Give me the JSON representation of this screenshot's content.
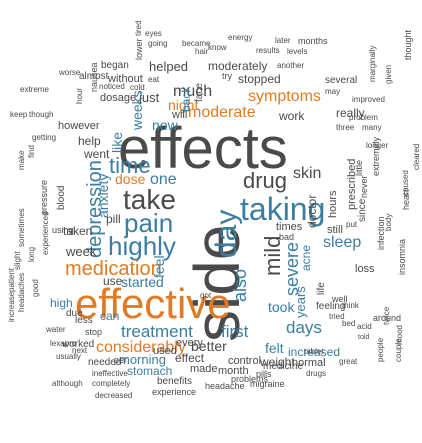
{
  "palette": {
    "gray": "#4f4f4f",
    "blue": "#3b7ea1",
    "orange": "#e07b24",
    "green": "#2f8f3a",
    "teal": "#4aa6b5",
    "darkgray": "#2e2e2e"
  },
  "words": [
    {
      "text": "side",
      "weight": 99,
      "color": "#4a4a4a"
    },
    {
      "text": "effects",
      "weight": 100,
      "color": "#4a4a4a"
    },
    {
      "text": "effective",
      "weight": 90,
      "color": "#e07b24"
    },
    {
      "text": "day",
      "weight": 50,
      "color": "#3b7ea1"
    },
    {
      "text": "drug",
      "weight": 40,
      "color": "#4a4a4a"
    },
    {
      "text": "taking",
      "weight": 48,
      "color": "#3b7ea1"
    },
    {
      "text": "take",
      "weight": 44,
      "color": "#4a4a4a"
    },
    {
      "text": "time",
      "weight": 38,
      "color": "#3b7ea1"
    },
    {
      "text": "pain",
      "weight": 40,
      "color": "#3b7ea1"
    },
    {
      "text": "highly",
      "weight": 40,
      "color": "#3b7ea1"
    },
    {
      "text": "medication",
      "weight": 36,
      "color": "#e07b24"
    },
    {
      "text": "depression",
      "weight": 30,
      "color": "#3b7ea1"
    },
    {
      "text": "mild",
      "weight": 30,
      "color": "#4a4a4a"
    },
    {
      "text": "severe",
      "weight": 28,
      "color": "#3b7ea1"
    },
    {
      "text": "also",
      "weight": 30,
      "color": "#3b7ea1"
    },
    {
      "text": "treatment",
      "weight": 28,
      "color": "#3b7ea1"
    },
    {
      "text": "considerably",
      "weight": 26,
      "color": "#e07b24"
    },
    {
      "text": "first",
      "weight": 26,
      "color": "#3b7ea1"
    },
    {
      "text": "days",
      "weight": 28,
      "color": "#3b7ea1"
    },
    {
      "text": "took",
      "weight": 24,
      "color": "#3b7ea1"
    },
    {
      "text": "sleep",
      "weight": 22,
      "color": "#3b7ea1"
    },
    {
      "text": "symptoms",
      "weight": 22,
      "color": "#e07b24"
    },
    {
      "text": "moderate",
      "weight": 22,
      "color": "#e07b24"
    },
    {
      "text": "one",
      "weight": 24,
      "color": "#3b7ea1"
    },
    {
      "text": "skin",
      "weight": 22,
      "color": "#4a4a4a"
    },
    {
      "text": "dose",
      "weight": 18,
      "color": "#e07b24"
    },
    {
      "text": "much",
      "weight": 20,
      "color": "#4a4a4a"
    },
    {
      "text": "night",
      "weight": 18,
      "color": "#e07b24"
    },
    {
      "text": "started",
      "weight": 18,
      "color": "#3b7ea1"
    },
    {
      "text": "use",
      "weight": 16,
      "color": "#4a4a4a"
    },
    {
      "text": "feel",
      "weight": 16,
      "color": "#3b7ea1"
    },
    {
      "text": "better",
      "weight": 16,
      "color": "#4a4a4a"
    },
    {
      "text": "every",
      "weight": 14,
      "color": "#4a4a4a"
    },
    {
      "text": "felt",
      "weight": 16,
      "color": "#3b7ea1"
    },
    {
      "text": "increased",
      "weight": 14,
      "color": "#3b7ea1"
    },
    {
      "text": "weight",
      "weight": 14,
      "color": "#4a4a4a"
    },
    {
      "text": "morning",
      "weight": 14,
      "color": "#3b7ea1"
    },
    {
      "text": "effect",
      "weight": 14,
      "color": "#4a4a4a"
    },
    {
      "text": "control",
      "weight": 12,
      "color": "#4a4a4a"
    },
    {
      "text": "made",
      "weight": 12,
      "color": "#4a4a4a"
    },
    {
      "text": "month",
      "weight": 12,
      "color": "#4a4a4a"
    },
    {
      "text": "stomach",
      "weight": 12,
      "color": "#3b7ea1"
    },
    {
      "text": "needed",
      "weight": 11,
      "color": "#4a4a4a"
    },
    {
      "text": "per",
      "weight": 11,
      "color": "#4a4a4a"
    },
    {
      "text": "used",
      "weight": 12,
      "color": "#4a4a4a"
    },
    {
      "text": "benefits",
      "weight": 11,
      "color": "#4a4a4a"
    },
    {
      "text": "experience",
      "weight": 10,
      "color": "#4a4a4a"
    },
    {
      "text": "headache",
      "weight": 10,
      "color": "#4a4a4a"
    },
    {
      "text": "migraine",
      "weight": 10,
      "color": "#4a4a4a"
    },
    {
      "text": "problems",
      "weight": 10,
      "color": "#4a4a4a"
    },
    {
      "text": "pills",
      "weight": 10,
      "color": "#4a4a4a"
    },
    {
      "text": "medicine",
      "weight": 10,
      "color": "#4a4a4a"
    },
    {
      "text": "drugs",
      "weight": 9,
      "color": "#4a4a4a"
    },
    {
      "text": "great",
      "weight": 9,
      "color": "#4a4a4a"
    },
    {
      "text": "normal",
      "weight": 12,
      "color": "#4a4a4a"
    },
    {
      "text": "tablet",
      "weight": 9,
      "color": "#4a4a4a"
    },
    {
      "text": "completely",
      "weight": 9,
      "color": "#4a4a4a"
    },
    {
      "text": "decreased",
      "weight": 9,
      "color": "#4a4a4a"
    },
    {
      "text": "although",
      "weight": 9,
      "color": "#4a4a4a"
    },
    {
      "text": "ineffective",
      "weight": 9,
      "color": "#4a4a4a"
    },
    {
      "text": "usually",
      "weight": 9,
      "color": "#4a4a4a"
    },
    {
      "text": "lexapro",
      "weight": 9,
      "color": "#4a4a4a"
    },
    {
      "text": "water",
      "weight": 9,
      "color": "#4a4a4a"
    },
    {
      "text": "worked",
      "weight": 10,
      "color": "#4a4a4a"
    },
    {
      "text": "next",
      "weight": 9,
      "color": "#4a4a4a"
    },
    {
      "text": "stop",
      "weight": 10,
      "color": "#4a4a4a"
    },
    {
      "text": "less",
      "weight": 11,
      "color": "#4a4a4a"
    },
    {
      "text": "can",
      "weight": 14,
      "color": "#3b7ea1"
    },
    {
      "text": "high",
      "weight": 12,
      "color": "#3b7ea1"
    },
    {
      "text": "due",
      "weight": 10,
      "color": "#4a4a4a"
    },
    {
      "text": "week",
      "weight": 14,
      "color": "#4a4a4a"
    },
    {
      "text": "taken",
      "weight": 12,
      "color": "#4a4a4a"
    },
    {
      "text": "using",
      "weight": 10,
      "color": "#4a4a4a"
    },
    {
      "text": "pill",
      "weight": 12,
      "color": "#4a4a4a"
    },
    {
      "text": "anxiety",
      "weight": 14,
      "color": "#3b7ea1"
    },
    {
      "text": "went",
      "weight": 12,
      "color": "#4a4a4a"
    },
    {
      "text": "help",
      "weight": 12,
      "color": "#4a4a4a"
    },
    {
      "text": "getting",
      "weight": 9,
      "color": "#4a4a4a"
    },
    {
      "text": "however",
      "weight": 11,
      "color": "#4a4a4a"
    },
    {
      "text": "keep",
      "weight": 9,
      "color": "#4a4a4a"
    },
    {
      "text": "though",
      "weight": 9,
      "color": "#4a4a4a"
    },
    {
      "text": "extreme",
      "weight": 9,
      "color": "#4a4a4a"
    },
    {
      "text": "worse",
      "weight": 9,
      "color": "#4a4a4a"
    },
    {
      "text": "almost",
      "weight": 10,
      "color": "#4a4a4a"
    },
    {
      "text": "began",
      "weight": 10,
      "color": "#4a4a4a"
    },
    {
      "text": "without",
      "weight": 11,
      "color": "#4a4a4a"
    },
    {
      "text": "eat",
      "weight": 9,
      "color": "#4a4a4a"
    },
    {
      "text": "noticed",
      "weight": 9,
      "color": "#4a4a4a"
    },
    {
      "text": "cold",
      "weight": 9,
      "color": "#4a4a4a"
    },
    {
      "text": "dosage",
      "weight": 12,
      "color": "#4a4a4a"
    },
    {
      "text": "just",
      "weight": 14,
      "color": "#4a4a4a"
    },
    {
      "text": "helped",
      "weight": 13,
      "color": "#4a4a4a"
    },
    {
      "text": "moderately",
      "weight": 12,
      "color": "#4a4a4a"
    },
    {
      "text": "stopped",
      "weight": 12,
      "color": "#4a4a4a"
    },
    {
      "text": "try",
      "weight": 10,
      "color": "#4a4a4a"
    },
    {
      "text": "going",
      "weight": 9,
      "color": "#4a4a4a"
    },
    {
      "text": "became",
      "weight": 9,
      "color": "#4a4a4a"
    },
    {
      "text": "hair",
      "weight": 9,
      "color": "#4a4a4a"
    },
    {
      "text": "know",
      "weight": 9,
      "color": "#4a4a4a"
    },
    {
      "text": "energy",
      "weight": 9,
      "color": "#4a4a4a"
    },
    {
      "text": "later",
      "weight": 9,
      "color": "#4a4a4a"
    },
    {
      "text": "months",
      "weight": 10,
      "color": "#4a4a4a"
    },
    {
      "text": "results",
      "weight": 9,
      "color": "#4a4a4a"
    },
    {
      "text": "levels",
      "weight": 9,
      "color": "#4a4a4a"
    },
    {
      "text": "another",
      "weight": 9,
      "color": "#4a4a4a"
    },
    {
      "text": "several",
      "weight": 10,
      "color": "#4a4a4a"
    },
    {
      "text": "may",
      "weight": 9,
      "color": "#4a4a4a"
    },
    {
      "text": "improved",
      "weight": 9,
      "color": "#4a4a4a"
    },
    {
      "text": "eyes",
      "weight": 9,
      "color": "#4a4a4a"
    },
    {
      "text": "will",
      "weight": 11,
      "color": "#4a4a4a"
    },
    {
      "text": "work",
      "weight": 13,
      "color": "#4a4a4a"
    },
    {
      "text": "really",
      "weight": 12,
      "color": "#4a4a4a"
    },
    {
      "text": "problem",
      "weight": 9,
      "color": "#4a4a4a"
    },
    {
      "text": "three",
      "weight": 9,
      "color": "#4a4a4a"
    },
    {
      "text": "many",
      "weight": 9,
      "color": "#4a4a4a"
    },
    {
      "text": "longer",
      "weight": 9,
      "color": "#4a4a4a"
    },
    {
      "text": "still",
      "weight": 12,
      "color": "#4a4a4a"
    },
    {
      "text": "times",
      "weight": 11,
      "color": "#4a4a4a"
    },
    {
      "text": "bad",
      "weight": 10,
      "color": "#4a4a4a"
    },
    {
      "text": "loss",
      "weight": 12,
      "color": "#4a4a4a"
    },
    {
      "text": "around",
      "weight": 10,
      "color": "#4a4a4a"
    },
    {
      "text": "think",
      "weight": 9,
      "color": "#4a4a4a"
    },
    {
      "text": "tried",
      "weight": 9,
      "color": "#4a4a4a"
    },
    {
      "text": "bed",
      "weight": 9,
      "color": "#4a4a4a"
    },
    {
      "text": "acid",
      "weight": 9,
      "color": "#4a4a4a"
    },
    {
      "text": "feeling",
      "weight": 11,
      "color": "#4a4a4a"
    },
    {
      "text": "well",
      "weight": 10,
      "color": "#4a4a4a"
    },
    {
      "text": "told",
      "weight": 9,
      "color": "#4a4a4a"
    },
    {
      "text": "people",
      "weight": 9,
      "color": "#4a4a4a"
    },
    {
      "text": "couple",
      "weight": 9,
      "color": "#4a4a4a"
    },
    {
      "text": "hours",
      "weight": 11,
      "color": "#4a4a4a"
    },
    {
      "text": "acne",
      "weight": 12,
      "color": "#3b7ea1"
    },
    {
      "text": "years",
      "weight": 12,
      "color": "#3b7ea1"
    },
    {
      "text": "doctor",
      "weight": 12,
      "color": "#4a4a4a"
    },
    {
      "text": "prescribed",
      "weight": 11,
      "color": "#4a4a4a"
    },
    {
      "text": "since",
      "weight": 10,
      "color": "#4a4a4a"
    },
    {
      "text": "infection",
      "weight": 9,
      "color": "#4a4a4a"
    },
    {
      "text": "insomnia",
      "weight": 9,
      "color": "#4a4a4a"
    },
    {
      "text": "heart",
      "weight": 9,
      "color": "#4a4a4a"
    },
    {
      "text": "extremely",
      "weight": 9,
      "color": "#4a4a4a"
    },
    {
      "text": "blood",
      "weight": 10,
      "color": "#4a4a4a"
    },
    {
      "text": "pressure",
      "weight": 10,
      "color": "#4a4a4a"
    },
    {
      "text": "life",
      "weight": 10,
      "color": "#4a4a4a"
    },
    {
      "text": "like",
      "weight": 14,
      "color": "#3b7ea1"
    },
    {
      "text": "weeks",
      "weight": 14,
      "color": "#3b7ea1"
    },
    {
      "text": "now",
      "weight": 14,
      "color": "#3b7ea1"
    },
    {
      "text": "back",
      "weight": 12,
      "color": "#3b7ea1"
    },
    {
      "text": "face",
      "weight": 10,
      "color": "#4a4a4a"
    },
    {
      "text": "lower",
      "weight": 9,
      "color": "#4a4a4a"
    },
    {
      "text": "thought",
      "weight": 9,
      "color": "#4a4a4a"
    },
    {
      "text": "given",
      "weight": 9,
      "color": "#4a4a4a"
    },
    {
      "text": "marginally",
      "weight": 9,
      "color": "#4a4a4a"
    },
    {
      "text": "got",
      "weight": 9,
      "color": "#4a4a4a"
    },
    {
      "text": "tired",
      "weight": 9,
      "color": "#4a4a4a"
    },
    {
      "text": "make",
      "weight": 9,
      "color": "#4a4a4a"
    },
    {
      "text": "mood",
      "weight": 9,
      "color": "#4a4a4a"
    },
    {
      "text": "twice",
      "weight": 9,
      "color": "#4a4a4a"
    },
    {
      "text": "body",
      "weight": 9,
      "color": "#4a4a4a"
    },
    {
      "text": "caused",
      "weight": 9,
      "color": "#4a4a4a"
    },
    {
      "text": "cleared",
      "weight": 9,
      "color": "#4a4a4a"
    },
    {
      "text": "little",
      "weight": 9,
      "color": "#4a4a4a"
    },
    {
      "text": "never",
      "weight": 9,
      "color": "#4a4a4a"
    },
    {
      "text": "nausea",
      "weight": 9,
      "color": "#4a4a4a"
    },
    {
      "text": "sometimes",
      "weight": 9,
      "color": "#4a4a4a"
    },
    {
      "text": "long",
      "weight": 9,
      "color": "#4a4a4a"
    },
    {
      "text": "good",
      "weight": 9,
      "color": "#4a4a4a"
    },
    {
      "text": "patient",
      "weight": 9,
      "color": "#4a4a4a"
    },
    {
      "text": "headaches",
      "weight": 9,
      "color": "#4a4a4a"
    },
    {
      "text": "slight",
      "weight": 9,
      "color": "#4a4a4a"
    },
    {
      "text": "increase",
      "weight": 9,
      "color": "#4a4a4a"
    },
    {
      "text": "experienced",
      "weight": 9,
      "color": "#4a4a4a"
    },
    {
      "text": "hour",
      "weight": 9,
      "color": "#4a4a4a"
    },
    {
      "text": "put",
      "weight": 9,
      "color": "#4a4a4a"
    },
    {
      "text": "find",
      "weight": 9,
      "color": "#4a4a4a"
    }
  ]
}
